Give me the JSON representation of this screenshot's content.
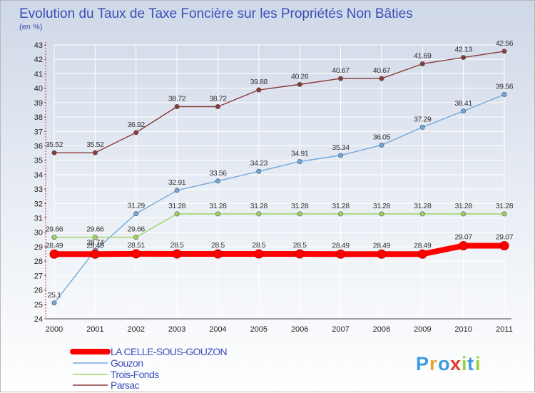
{
  "chart_data": {
    "type": "line",
    "title": "Evolution du Taux de Taxe Foncière sur les Propriétés Non Bâties",
    "subtitle": "(en %)",
    "x": [
      "2000",
      "2001",
      "2002",
      "2003",
      "2004",
      "2005",
      "2006",
      "2007",
      "2008",
      "2009",
      "2010",
      "2011"
    ],
    "ylim": [
      24,
      43
    ],
    "yticks": [
      "24",
      "25",
      "26",
      "27",
      "28",
      "29",
      "30",
      "31",
      "32",
      "33",
      "34",
      "35",
      "36",
      "37",
      "38",
      "39",
      "40",
      "41",
      "42",
      "43"
    ],
    "grid": true,
    "legend": "bottom-left",
    "series": [
      {
        "name": "LA CELLE-SOUS-GOUZON",
        "color": "#ff0000",
        "values": [
          28.49,
          28.49,
          28.51,
          28.5,
          28.5,
          28.5,
          28.5,
          28.49,
          28.49,
          28.49,
          29.07,
          29.07
        ],
        "labels": [
          "28.49",
          "28.49",
          "28.51",
          "28.5",
          "28.5",
          "28.5",
          "28.5",
          "28.49",
          "28.49",
          "28.49",
          "29.07",
          "29.07"
        ]
      },
      {
        "name": "Gouzon",
        "color": "#6fa8dc",
        "values": [
          25.1,
          28.74,
          31.29,
          32.91,
          33.56,
          34.23,
          34.91,
          35.34,
          36.05,
          37.29,
          38.41,
          39.56
        ],
        "labels": [
          "25.1",
          "28.74",
          "31.29",
          "32.91",
          "33.56",
          "34.23",
          "34.91",
          "35.34",
          "36.05",
          "37.29",
          "38.41",
          "39.56"
        ]
      },
      {
        "name": "Trois-Fonds",
        "color": "#9bd65e",
        "values": [
          29.66,
          29.66,
          29.66,
          31.28,
          31.28,
          31.28,
          31.28,
          31.28,
          31.28,
          31.28,
          31.28,
          31.28
        ],
        "labels": [
          "29.66",
          "29.66",
          "29.66",
          "31.28",
          "31.28",
          "31.28",
          "31.28",
          "31.28",
          "31.28",
          "31.28",
          "31.28",
          "31.28"
        ]
      },
      {
        "name": "Parsac",
        "color": "#8b3a3a",
        "values": [
          35.52,
          35.52,
          36.92,
          38.72,
          38.72,
          39.88,
          40.26,
          40.67,
          40.67,
          41.69,
          42.13,
          42.56
        ],
        "labels": [
          "35.52",
          "35.52",
          "36.92",
          "38.72",
          "38.72",
          "39.88",
          "40.26",
          "40.67",
          "40.67",
          "41.69",
          "42.13",
          "42.56"
        ]
      }
    ]
  },
  "logo": {
    "letters": [
      "P",
      "r",
      "o",
      "x",
      "i",
      "t",
      "i"
    ],
    "colors": [
      "#3d9be0",
      "#e8a13a",
      "#3d9be0",
      "#e23a2b",
      "#9ccf3a",
      "#3d9be0",
      "#9ccf3a"
    ]
  }
}
